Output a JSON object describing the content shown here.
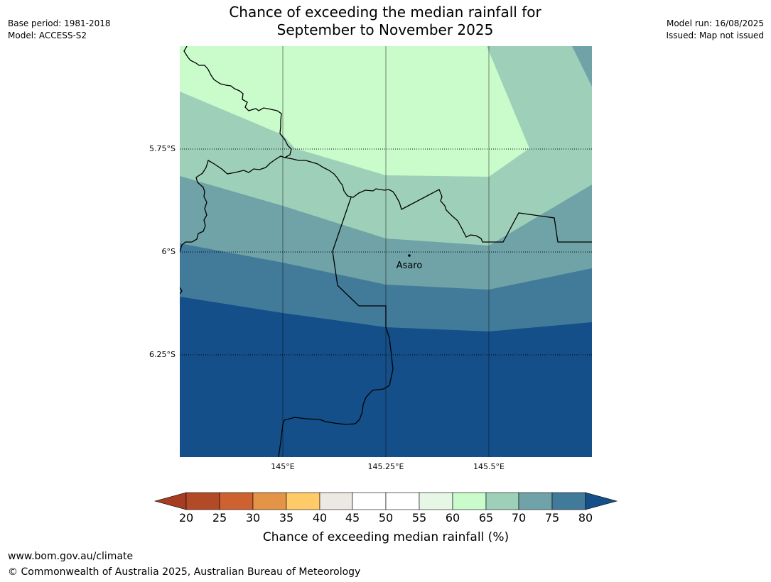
{
  "header": {
    "title_line1": "Chance of exceeding the median rainfall for",
    "title_line2": "September to November 2025",
    "base_period": "Base period: 1981-2018",
    "model": "Model: ACCESS-S2",
    "model_run": "Model run: 16/08/2025",
    "issued": "Issued: Map not issued"
  },
  "map": {
    "lat_labels": [
      "5.75°S",
      "6°S",
      "6.25°S"
    ],
    "lon_labels": [
      "145°E",
      "145.25°E",
      "145.5°E"
    ],
    "place": {
      "name": "Asaro"
    }
  },
  "legend": {
    "title": "Chance of exceeding median rainfall (%)",
    "ticks": [
      "20",
      "25",
      "30",
      "35",
      "40",
      "45",
      "50",
      "55",
      "60",
      "65",
      "70",
      "75",
      "80"
    ],
    "colors": {
      "below_20": "#a63d22",
      "20_25": "#b34a27",
      "25_30": "#cd6230",
      "30_35": "#e39446",
      "35_40": "#ffcb68",
      "40_45": "#ece8e4",
      "45_50": "#ffffff",
      "50_55": "#ffffff",
      "55_60": "#e7f7e6",
      "60_65": "#c9fbcb",
      "65_70": "#9ed0b9",
      "70_75": "#6fa3a7",
      "75_80": "#427b9a",
      "above_80": "#154f89"
    }
  },
  "footer": {
    "url": "www.bom.gov.au/climate",
    "copyright": "© Commonwealth of Australia 2025, Australian Bureau of Meteorology"
  }
}
